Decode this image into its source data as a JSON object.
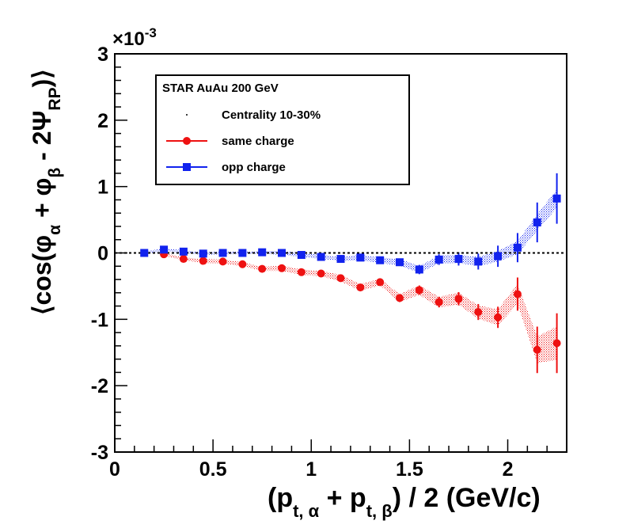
{
  "chart_data": {
    "type": "scatter",
    "exponent_label": "×10",
    "exponent_power": "-3",
    "xlabel": {
      "open": "(p",
      "sub1": "t, α",
      "mid": " + p",
      "sub2": "t, β",
      "close": ") / 2  (GeV/c)"
    },
    "ylabel": {
      "open": "⟨cos(φ",
      "sub1": "α",
      "mid1": " + φ",
      "sub2": "β",
      "mid2": " - 2Ψ",
      "sub3": "RP",
      "close": ")⟩"
    },
    "xlim": [
      0,
      2.3
    ],
    "ylim": [
      -3,
      3
    ],
    "y_scale_factor": 0.001,
    "x_ticks": [
      "0",
      "0.5",
      "1",
      "1.5",
      "2"
    ],
    "x_tick_values": [
      0,
      0.5,
      1,
      1.5,
      2
    ],
    "y_ticks": [
      "-3",
      "-2",
      "-1",
      "0",
      "1",
      "2",
      "3"
    ],
    "y_tick_values": [
      -3,
      -2,
      -1,
      0,
      1,
      2,
      3
    ],
    "zero_line": true,
    "grid": false,
    "legend": {
      "position": "top-left",
      "header": "STAR  AuAu 200 GeV",
      "entries": [
        "Centrality 10-30%",
        "same charge",
        "opp charge"
      ]
    },
    "series": [
      {
        "name": "same charge",
        "color": "#ee1111",
        "marker": "circle",
        "x": [
          0.25,
          0.35,
          0.45,
          0.55,
          0.65,
          0.75,
          0.85,
          0.95,
          1.05,
          1.15,
          1.25,
          1.35,
          1.45,
          1.55,
          1.65,
          1.75,
          1.85,
          1.95,
          2.05,
          2.15,
          2.25
        ],
        "y": [
          -0.02,
          -0.09,
          -0.12,
          -0.13,
          -0.17,
          -0.24,
          -0.23,
          -0.29,
          -0.31,
          -0.38,
          -0.52,
          -0.44,
          -0.68,
          -0.56,
          -0.74,
          -0.69,
          -0.89,
          -0.97,
          -0.62,
          -1.46,
          -1.36
        ],
        "err": [
          0.02,
          0.02,
          0.02,
          0.03,
          0.03,
          0.03,
          0.03,
          0.04,
          0.04,
          0.04,
          0.05,
          0.05,
          0.06,
          0.07,
          0.08,
          0.1,
          0.12,
          0.16,
          0.25,
          0.35,
          0.45
        ],
        "band": [
          0.02,
          0.02,
          0.03,
          0.03,
          0.03,
          0.03,
          0.04,
          0.04,
          0.04,
          0.05,
          0.05,
          0.05,
          0.06,
          0.07,
          0.08,
          0.09,
          0.1,
          0.12,
          0.15,
          0.2,
          0.25
        ]
      },
      {
        "name": "opp charge",
        "color": "#1122ee",
        "marker": "square",
        "x": [
          0.15,
          0.25,
          0.35,
          0.45,
          0.55,
          0.65,
          0.75,
          0.85,
          0.95,
          1.05,
          1.15,
          1.25,
          1.35,
          1.45,
          1.55,
          1.65,
          1.75,
          1.85,
          1.95,
          2.05,
          2.15,
          2.25
        ],
        "y": [
          0.0,
          0.05,
          0.02,
          -0.01,
          0.0,
          0.0,
          0.01,
          0.0,
          -0.03,
          -0.06,
          -0.09,
          -0.07,
          -0.11,
          -0.14,
          -0.25,
          -0.1,
          -0.09,
          -0.13,
          -0.05,
          0.08,
          0.46,
          0.82
        ],
        "err": [
          0.02,
          0.02,
          0.02,
          0.02,
          0.02,
          0.02,
          0.03,
          0.03,
          0.03,
          0.03,
          0.04,
          0.04,
          0.05,
          0.05,
          0.07,
          0.08,
          0.1,
          0.12,
          0.16,
          0.22,
          0.3,
          0.38
        ],
        "band": [
          0.02,
          0.02,
          0.02,
          0.02,
          0.02,
          0.02,
          0.02,
          0.03,
          0.03,
          0.03,
          0.03,
          0.04,
          0.04,
          0.05,
          0.05,
          0.06,
          0.06,
          0.07,
          0.08,
          0.1,
          0.12,
          0.14
        ]
      }
    ]
  }
}
